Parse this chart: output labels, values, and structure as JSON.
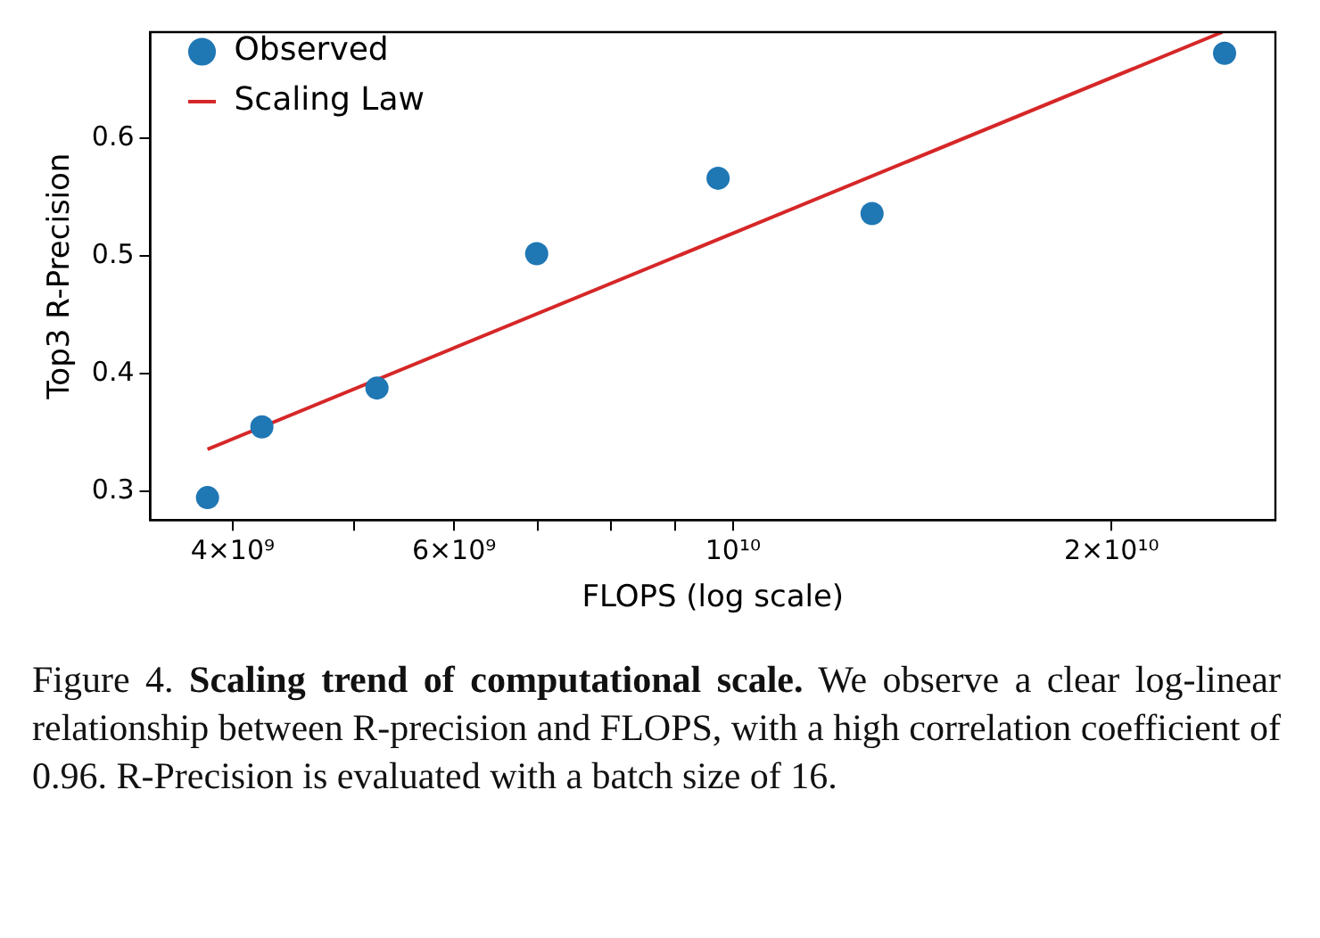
{
  "chart_data": {
    "type": "scatter",
    "xlabel": "FLOPS (log scale)",
    "ylabel": "Top3 R-Precision",
    "series": [
      {
        "name": "Observed",
        "marker": "circle",
        "color": "#1f77b4",
        "x": [
          3820000000.0,
          4220000000.0,
          5210000000.0,
          6980000000.0,
          9730000000.0,
          12900000000.0,
          24600000000.0
        ],
        "values": [
          0.295,
          0.355,
          0.388,
          0.502,
          0.566,
          0.536,
          0.672
        ]
      },
      {
        "name": "Scaling Law",
        "type": "line",
        "line_style": "solid",
        "color": "#d62728",
        "x": [
          3820000000.0,
          24500000000.0
        ],
        "values": [
          0.336,
          0.69
        ]
      }
    ],
    "log": "x",
    "xlim": [
      3440000000.0,
      27000000000.0
    ],
    "xticks": [
      {
        "value": 4000000000.0,
        "label": "4×10⁹"
      },
      {
        "value": 5000000000.0,
        "label": null
      },
      {
        "value": 6000000000.0,
        "label": "6×10⁹"
      },
      {
        "value": 7000000000.0,
        "label": null
      },
      {
        "value": 8000000000.0,
        "label": null
      },
      {
        "value": 9000000000.0,
        "label": null
      },
      {
        "value": 10000000000.0,
        "label": "10¹⁰"
      },
      {
        "value": 20000000000.0,
        "label": "2×10¹⁰"
      }
    ],
    "ylim": [
      0.276,
      0.69
    ],
    "yticks": [
      0.3,
      0.4,
      0.5,
      0.6
    ],
    "grid": false,
    "legend": "top left",
    "annotations": [
      "Figure 4.",
      "Scaling trend of computational scale.",
      "We observe a clear log-linear relationship between R-precision and FLOPS, with a high correlation coefficient of 0.96. R-Precision is evaluated with a batch size of 16."
    ]
  }
}
